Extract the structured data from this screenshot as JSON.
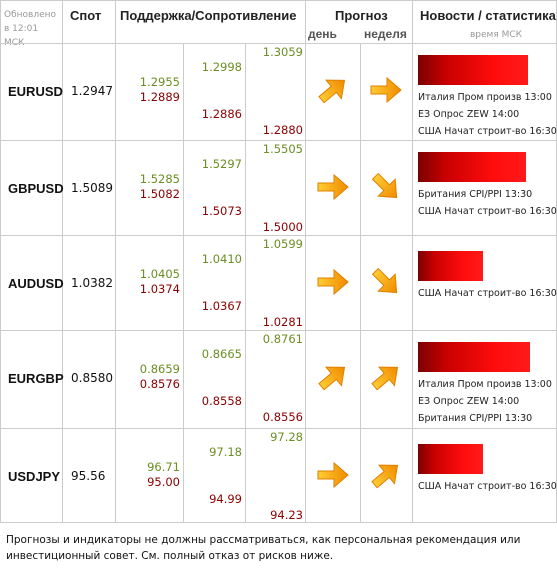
{
  "header": {
    "updated": "Обновлено в 12:01 МСК",
    "spot": "Спот",
    "levels": "Поддержка/Сопротивление",
    "forecast": "Прогноз",
    "day": "день",
    "week": "неделя",
    "news": "Новости / статистика",
    "news_time": "время МСК"
  },
  "rows": [
    {
      "pair": "EURUSD",
      "spot": "1.2947",
      "levels": [
        "1.3059",
        "1.2998",
        "1.2955",
        "1.2889",
        "1.2886",
        "1.2880"
      ],
      "news": [
        "Италия Пром произв 13:00",
        "ЕЗ Опрос ZEW 14:00",
        "США Начат строит-во 16:30"
      ]
    },
    {
      "pair": "GBPUSD",
      "spot": "1.5089",
      "levels": [
        "1.5505",
        "1.5297",
        "1.5285",
        "1.5082",
        "1.5073",
        "1.5000"
      ],
      "news": [
        "Британия CPI/PPI 13:30",
        "США Начат строит-во 16:30"
      ]
    },
    {
      "pair": "AUDUSD",
      "spot": "1.0382",
      "levels": [
        "1.0599",
        "1.0410",
        "1.0405",
        "1.0374",
        "1.0367",
        "1.0281"
      ],
      "news": [
        "США Начат строит-во 16:30"
      ]
    },
    {
      "pair": "EURGBP",
      "spot": "0.8580",
      "levels": [
        "0.8761",
        "0.8665",
        "0.8659",
        "0.8576",
        "0.8558",
        "0.8556"
      ],
      "news": [
        "Италия Пром произв 13:00",
        "ЕЗ Опрос ZEW 14:00",
        "Британия CPI/PPI 13:30"
      ]
    },
    {
      "pair": "USDJPY",
      "spot": "95.56",
      "levels": [
        "97.28",
        "97.18",
        "96.71",
        "95.00",
        "94.99",
        "94.23"
      ],
      "news": [
        "США Начат строит-во 16:30"
      ]
    }
  ],
  "footer": "Прогнозы и индикаторы не должны рассматриваться, как персональная рекомендация или инвестиционный совет. См. полный отказ от рисков ниже."
}
